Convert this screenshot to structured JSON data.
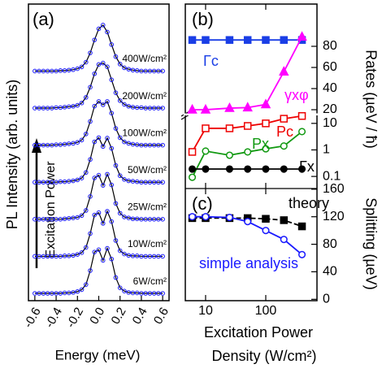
{
  "chart_data": [
    {
      "type": "spectra",
      "title": "(a)",
      "x_label": "Energy (meV)",
      "y_label": "PL Intensity (arb. units)",
      "annotation": "Excitation Power",
      "xlim": [
        -0.66,
        0.66
      ],
      "ylim": [
        0,
        1.05
      ],
      "xticks": [
        -0.6,
        -0.4,
        -0.2,
        {
          "value": 0,
          "label": "0.0"
        },
        0.2,
        0.4,
        0.6
      ],
      "x": [
        -0.6,
        -0.56,
        -0.52,
        -0.48,
        -0.44,
        -0.4,
        -0.36,
        -0.32,
        -0.28,
        -0.24,
        -0.2,
        -0.16,
        -0.12,
        -0.08,
        -0.04,
        0,
        0.04,
        0.08,
        0.12,
        0.16,
        0.2,
        0.24,
        0.28,
        0.32,
        0.36,
        0.4,
        0.44,
        0.48,
        0.52,
        0.56,
        0.6
      ],
      "color": "#1a1aff",
      "series": [
        {
          "name": "400W/cm²",
          "values": [
            0.01,
            0.01,
            0.01,
            0.01,
            0.01,
            0.01,
            0.02,
            0.02,
            0.03,
            0.04,
            0.06,
            0.1,
            0.2,
            0.4,
            0.68,
            0.92,
            1.0,
            0.85,
            0.58,
            0.32,
            0.16,
            0.08,
            0.05,
            0.03,
            0.02,
            0.01,
            0.01,
            0.01,
            0.01,
            0.01,
            0.01
          ]
        },
        {
          "name": "200W/cm²",
          "values": [
            0.01,
            0.01,
            0.01,
            0.01,
            0.01,
            0.02,
            0.02,
            0.03,
            0.04,
            0.05,
            0.07,
            0.12,
            0.24,
            0.46,
            0.75,
            0.95,
            0.98,
            0.9,
            0.62,
            0.34,
            0.17,
            0.09,
            0.05,
            0.03,
            0.02,
            0.02,
            0.01,
            0.01,
            0.01,
            0.01,
            0.01
          ]
        },
        {
          "name": "100W/cm²",
          "values": [
            0.01,
            0.01,
            0.01,
            0.01,
            0.01,
            0.02,
            0.02,
            0.03,
            0.04,
            0.05,
            0.07,
            0.12,
            0.25,
            0.52,
            0.85,
            0.95,
            0.88,
            0.95,
            0.7,
            0.37,
            0.17,
            0.08,
            0.05,
            0.03,
            0.02,
            0.01,
            0.01,
            0.01,
            0.01,
            0.01,
            0.01
          ]
        },
        {
          "name": "50W/cm²",
          "values": [
            0.01,
            0.01,
            0.01,
            0.01,
            0.01,
            0.01,
            0.02,
            0.02,
            0.03,
            0.04,
            0.06,
            0.1,
            0.22,
            0.5,
            0.88,
            0.97,
            0.78,
            0.96,
            0.74,
            0.37,
            0.15,
            0.07,
            0.04,
            0.03,
            0.02,
            0.01,
            0.01,
            0.01,
            0.01,
            0.01,
            0.01
          ]
        },
        {
          "name": "25W/cm²",
          "values": [
            0.01,
            0.01,
            0.01,
            0.01,
            0.01,
            0.01,
            0.01,
            0.02,
            0.03,
            0.04,
            0.05,
            0.09,
            0.2,
            0.5,
            0.9,
            0.96,
            0.74,
            0.98,
            0.75,
            0.35,
            0.14,
            0.06,
            0.04,
            0.02,
            0.02,
            0.01,
            0.01,
            0.01,
            0.01,
            0.01,
            0.01
          ]
        },
        {
          "name": "10W/cm²",
          "values": [
            0.01,
            0.01,
            0.01,
            0.01,
            0.01,
            0.01,
            0.01,
            0.02,
            0.02,
            0.03,
            0.05,
            0.09,
            0.2,
            0.5,
            0.9,
            0.95,
            0.72,
            0.98,
            0.76,
            0.35,
            0.13,
            0.06,
            0.03,
            0.02,
            0.02,
            0.01,
            0.01,
            0.01,
            0.01,
            0.01,
            0.01
          ]
        },
        {
          "name": "6W/cm²",
          "values": [
            0.01,
            0.01,
            0.01,
            0.01,
            0.01,
            0.01,
            0.01,
            0.02,
            0.02,
            0.03,
            0.05,
            0.09,
            0.2,
            0.5,
            0.9,
            0.95,
            0.72,
            0.98,
            0.75,
            0.35,
            0.13,
            0.06,
            0.03,
            0.02,
            0.02,
            0.01,
            0.01,
            0.01,
            0.01,
            0.01,
            0.01
          ]
        }
      ]
    },
    {
      "type": "line",
      "title": "(b)",
      "y_label": "Rates (µeV / ħ)",
      "log_x": true,
      "log_y2": true,
      "xlim": [
        4.6,
        710
      ],
      "xticks": [
        10,
        100
      ],
      "ylim": [
        17.7,
        120
      ],
      "yticks": [
        20,
        40,
        60,
        80
      ],
      "y2lim": [
        0.035,
        20
      ],
      "y2ticks": [
        0.1,
        1,
        10
      ],
      "x": [
        6,
        10,
        25,
        50,
        100,
        200,
        400
      ],
      "series": [
        {
          "name": "Γc",
          "color": "#1a3ee6",
          "marker": "square",
          "filled": true,
          "values": [
            86,
            86,
            86,
            86,
            86,
            86,
            86
          ]
        },
        {
          "name": "γxφ",
          "color": "#ff00ff",
          "marker": "triangle",
          "filled": true,
          "values": [
            20,
            20,
            21.5,
            22,
            25,
            56,
            89
          ]
        },
        {
          "name": "Pc",
          "color": "#ee0000",
          "marker": "square",
          "filled": false,
          "axis": "y2",
          "values": [
            0.84,
            6.5,
            6.5,
            8,
            10,
            15,
            19
          ]
        },
        {
          "name": "Px",
          "color": "#119911",
          "marker": "circle",
          "filled": false,
          "axis": "y2",
          "values": [
            0.093,
            0.9,
            0.63,
            0.84,
            1.1,
            1.4,
            4.9
          ]
        },
        {
          "name": "Γx",
          "color": "#000000",
          "marker": "circle",
          "filled": true,
          "axis": "y2",
          "values": [
            0.19,
            0.19,
            0.19,
            0.19,
            0.19,
            0.19,
            0.19
          ]
        }
      ]
    },
    {
      "type": "line",
      "title": "(c)",
      "y_label": "Splitting (µeV)",
      "x_label": [
        "Excitation Power",
        "Density (W/cm²)"
      ],
      "log_x": true,
      "xlim": [
        4.6,
        710
      ],
      "xticks": [
        10,
        100
      ],
      "ylim": [
        -2,
        161
      ],
      "yticks": [
        0,
        40,
        80,
        120,
        160
      ],
      "x": [
        6,
        10,
        25,
        50,
        100,
        200,
        400
      ],
      "series": [
        {
          "name": "theory",
          "color": "#000000",
          "marker": "square",
          "filled": true,
          "line_style": "dashed",
          "values": [
            118,
            118,
            118,
            118,
            117,
            115,
            106
          ]
        },
        {
          "name": "simple analysis",
          "color": "#1a1aff",
          "marker": "circle",
          "filled": false,
          "values": [
            120,
            120,
            119,
            113,
            100,
            87,
            65
          ]
        }
      ]
    }
  ]
}
